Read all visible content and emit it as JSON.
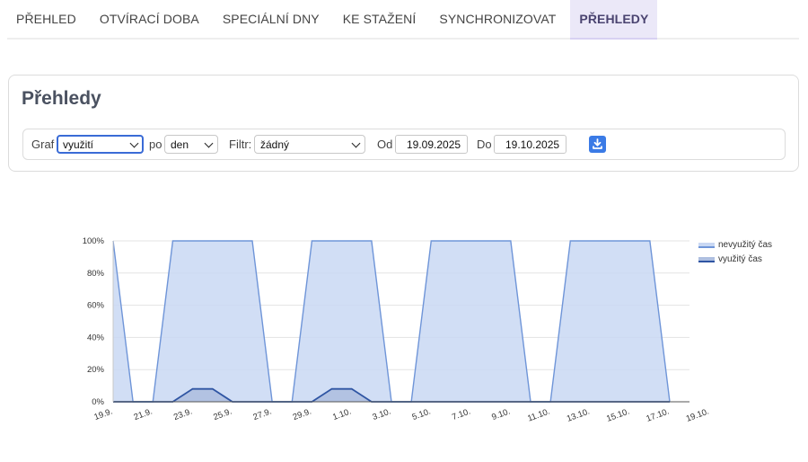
{
  "tabs": [
    {
      "label": "PŘEHLED",
      "active": false
    },
    {
      "label": "OTVÍRACÍ DOBA",
      "active": false
    },
    {
      "label": "SPECIÁLNÍ DNY",
      "active": false
    },
    {
      "label": "KE STAŽENÍ",
      "active": false
    },
    {
      "label": "SYNCHRONIZOVAT",
      "active": false
    },
    {
      "label": "PŘEHLEDY",
      "active": true
    }
  ],
  "panel": {
    "title": "Přehledy",
    "filters": {
      "graph_label": "Graf",
      "graph_value": "využití",
      "by_label": "po",
      "by_value": "den",
      "filter_label": "Filtr:",
      "filter_value": "žádný",
      "from_label": "Od",
      "from_value": "19.09.2025",
      "to_label": "Do",
      "to_value": "19.10.2025",
      "download_icon": "download-icon"
    }
  },
  "chart_data": {
    "type": "area",
    "x": [
      "19.9.",
      "20.9.",
      "21.9.",
      "22.9.",
      "23.9.",
      "24.9.",
      "25.9.",
      "26.9.",
      "27.9.",
      "28.9.",
      "29.9.",
      "30.9.",
      "1.10.",
      "2.10.",
      "3.10.",
      "4.10.",
      "5.10.",
      "6.10.",
      "7.10.",
      "8.10.",
      "9.10.",
      "10.10.",
      "11.10.",
      "12.10.",
      "13.10.",
      "14.10.",
      "15.10.",
      "16.10.",
      "17.10.",
      "18.10.",
      "19.10."
    ],
    "x_tick_labels": [
      "19.9.",
      "21.9.",
      "23.9.",
      "25.9.",
      "27.9.",
      "29.9.",
      "1.10.",
      "3.10.",
      "5.10.",
      "7.10.",
      "9.10.",
      "11.10.",
      "13.10.",
      "15.10.",
      "17.10.",
      "19.10."
    ],
    "series": [
      {
        "name": "nevyužitý čas",
        "color": "#6f95d8",
        "fill": "#c9d8f3",
        "values": [
          100,
          0,
          0,
          100,
          100,
          100,
          100,
          100,
          0,
          0,
          100,
          100,
          100,
          100,
          0,
          0,
          100,
          100,
          100,
          100,
          100,
          0,
          0,
          100,
          100,
          100,
          100,
          100,
          0,
          null,
          null
        ]
      },
      {
        "name": "využitý čas",
        "color": "#2f55a3",
        "fill": "#aebfe0",
        "values": [
          0,
          0,
          0,
          0,
          8,
          8,
          0,
          0,
          0,
          0,
          0,
          8,
          8,
          0,
          0,
          0,
          0,
          0,
          0,
          0,
          0,
          0,
          0,
          0,
          0,
          0,
          0,
          0,
          0,
          null,
          null
        ]
      }
    ],
    "y_ticks": [
      "0%",
      "20%",
      "40%",
      "60%",
      "80%",
      "100%"
    ],
    "ylim": [
      0,
      100
    ],
    "grid": true,
    "legend": "top-right"
  }
}
